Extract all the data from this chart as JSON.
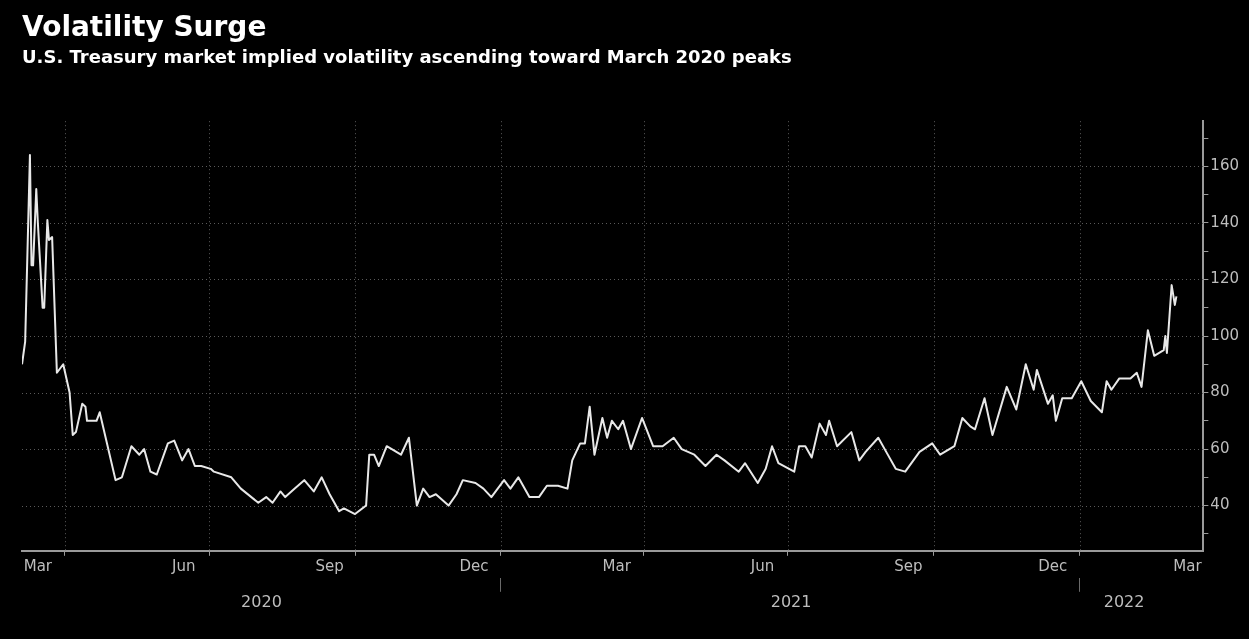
{
  "chart_data": {
    "type": "line",
    "title": "Volatility Surge",
    "subtitle": "U.S. Treasury market implied volatility ascending toward March 2020 peaks",
    "color": "#e8e8e8",
    "grid": true,
    "x": [
      "2020-03-05",
      "2020-03-07",
      "2020-03-10",
      "2020-03-11",
      "2020-03-12",
      "2020-03-14",
      "2020-03-15",
      "2020-03-18",
      "2020-03-19",
      "2020-03-21",
      "2020-03-22",
      "2020-03-24",
      "2020-03-27",
      "2020-03-31",
      "2020-04-04",
      "2020-04-06",
      "2020-04-08",
      "2020-04-12",
      "2020-04-14",
      "2020-04-15",
      "2020-04-21",
      "2020-04-23",
      "2020-05-03",
      "2020-05-07",
      "2020-05-13",
      "2020-05-18",
      "2020-05-21",
      "2020-05-25",
      "2020-05-29",
      "2020-06-05",
      "2020-06-09",
      "2020-06-14",
      "2020-06-18",
      "2020-06-22",
      "2020-06-26",
      "2020-07-02",
      "2020-07-04",
      "2020-07-15",
      "2020-07-21",
      "2020-08-01",
      "2020-08-06",
      "2020-08-10",
      "2020-08-15",
      "2020-08-18",
      "2020-08-24",
      "2020-08-30",
      "2020-09-05",
      "2020-09-10",
      "2020-09-15",
      "2020-09-21",
      "2020-09-24",
      "2020-10-01",
      "2020-10-08",
      "2020-10-10",
      "2020-10-13",
      "2020-10-16",
      "2020-10-21",
      "2020-10-30",
      "2020-11-04",
      "2020-11-09",
      "2020-11-13",
      "2020-11-17",
      "2020-11-21",
      "2020-11-29",
      "2020-12-04",
      "2020-12-08",
      "2020-12-16",
      "2020-12-21",
      "2020-12-26",
      "2021-01-03",
      "2021-01-07",
      "2021-01-12",
      "2021-01-19",
      "2021-01-25",
      "2021-01-30",
      "2021-02-06",
      "2021-02-12",
      "2021-02-15",
      "2021-02-20",
      "2021-02-23",
      "2021-02-26",
      "2021-03-01",
      "2021-03-06",
      "2021-03-09",
      "2021-03-12",
      "2021-03-16",
      "2021-03-19",
      "2021-03-24",
      "2021-03-31",
      "2021-04-07",
      "2021-04-13",
      "2021-04-20",
      "2021-04-25",
      "2021-05-03",
      "2021-05-10",
      "2021-05-17",
      "2021-05-22",
      "2021-05-31",
      "2021-06-04",
      "2021-06-12",
      "2021-06-17",
      "2021-06-21",
      "2021-06-25",
      "2021-07-05",
      "2021-07-08",
      "2021-07-12",
      "2021-07-16",
      "2021-07-21",
      "2021-07-25",
      "2021-07-27",
      "2021-08-01",
      "2021-08-10",
      "2021-08-15",
      "2021-08-19",
      "2021-08-27",
      "2021-09-01",
      "2021-09-07",
      "2021-09-13",
      "2021-09-22",
      "2021-09-30",
      "2021-10-05",
      "2021-10-14",
      "2021-10-19",
      "2021-10-24",
      "2021-10-27",
      "2021-11-02",
      "2021-11-07",
      "2021-11-16",
      "2021-11-22",
      "2021-11-28",
      "2021-12-03",
      "2021-12-05",
      "2021-12-12",
      "2021-12-15",
      "2021-12-17",
      "2021-12-21",
      "2021-12-27",
      "2022-01-02",
      "2022-01-08",
      "2022-01-15",
      "2022-01-18",
      "2022-01-21",
      "2022-01-26",
      "2022-02-02",
      "2022-02-06",
      "2022-02-09",
      "2022-02-13",
      "2022-02-17",
      "2022-02-23",
      "2022-02-24",
      "2022-02-25",
      "2022-02-28",
      "2022-03-02",
      "2022-03-03"
    ],
    "values": [
      90,
      98,
      164,
      125,
      125,
      152,
      140,
      110,
      110,
      141,
      134,
      135,
      87,
      90,
      80,
      65,
      66,
      76,
      75,
      70,
      70,
      73,
      49,
      50,
      61,
      58,
      60,
      52,
      51,
      62,
      63,
      56,
      60,
      54,
      54,
      53,
      52,
      50,
      46,
      41,
      43,
      41,
      45,
      43,
      46,
      49,
      45,
      50,
      44,
      38,
      39,
      37,
      40,
      58,
      58,
      54,
      61,
      58,
      64,
      40,
      46,
      43,
      44,
      40,
      44,
      49,
      48,
      46,
      43,
      49,
      46,
      50,
      43,
      43,
      47,
      47,
      46,
      56,
      62,
      62,
      75,
      58,
      71,
      64,
      70,
      67,
      70,
      60,
      71,
      61,
      61,
      64,
      60,
      58,
      54,
      58,
      56,
      52,
      55,
      48,
      53,
      61,
      55,
      52,
      61,
      61,
      57,
      69,
      65,
      70,
      61,
      66,
      56,
      59,
      64,
      59,
      53,
      52,
      59,
      62,
      58,
      61,
      71,
      68,
      67,
      78,
      65,
      82,
      74,
      90,
      81,
      88,
      76,
      79,
      70,
      78,
      78,
      84,
      77,
      73,
      84,
      81,
      85,
      85,
      87,
      82,
      102,
      93,
      95,
      100,
      94,
      118,
      111,
      114
    ],
    "xlim": [
      "2020-03-05",
      "2022-03-20"
    ],
    "xticks": [
      {
        "value": "2020-03-15",
        "label": "Mar"
      },
      {
        "value": "2020-04-01",
        "label": null
      },
      {
        "value": "2020-06-15",
        "label": "Jun"
      },
      {
        "value": "2020-07-01",
        "label": null
      },
      {
        "value": "2020-09-15",
        "label": "Sep"
      },
      {
        "value": "2020-10-01",
        "label": null
      },
      {
        "value": "2020-12-15",
        "label": "Dec"
      },
      {
        "value": "2021-01-01",
        "label": null
      },
      {
        "value": "2021-03-15",
        "label": "Mar"
      },
      {
        "value": "2021-04-01",
        "label": null
      },
      {
        "value": "2021-06-15",
        "label": "Jun"
      },
      {
        "value": "2021-07-01",
        "label": null
      },
      {
        "value": "2021-09-15",
        "label": "Sep"
      },
      {
        "value": "2021-10-01",
        "label": null
      },
      {
        "value": "2021-12-15",
        "label": "Dec"
      },
      {
        "value": "2022-01-01",
        "label": null
      },
      {
        "value": "2022-03-10",
        "label": "Mar"
      }
    ],
    "x2lim": [
      "2020-03-05",
      "2022-03-20"
    ],
    "x2ticks": [
      {
        "value": "2020-08-03",
        "label": "2020"
      },
      {
        "value": "2021-01-01",
        "label": null
      },
      {
        "value": "2021-07-03",
        "label": "2021"
      },
      {
        "value": "2022-01-01",
        "label": null
      },
      {
        "value": "2022-01-29",
        "label": "2022"
      }
    ],
    "ylim": [
      24,
      176
    ],
    "yticks": [
      {
        "value": 30,
        "label": null
      },
      40,
      {
        "value": 50,
        "label": null
      },
      60,
      {
        "value": 70,
        "label": null
      },
      80,
      {
        "value": 90,
        "label": null
      },
      100,
      {
        "value": 110,
        "label": null
      },
      120,
      {
        "value": 130,
        "label": null
      },
      140,
      {
        "value": 150,
        "label": null
      },
      160,
      {
        "value": 170,
        "label": null
      }
    ]
  }
}
